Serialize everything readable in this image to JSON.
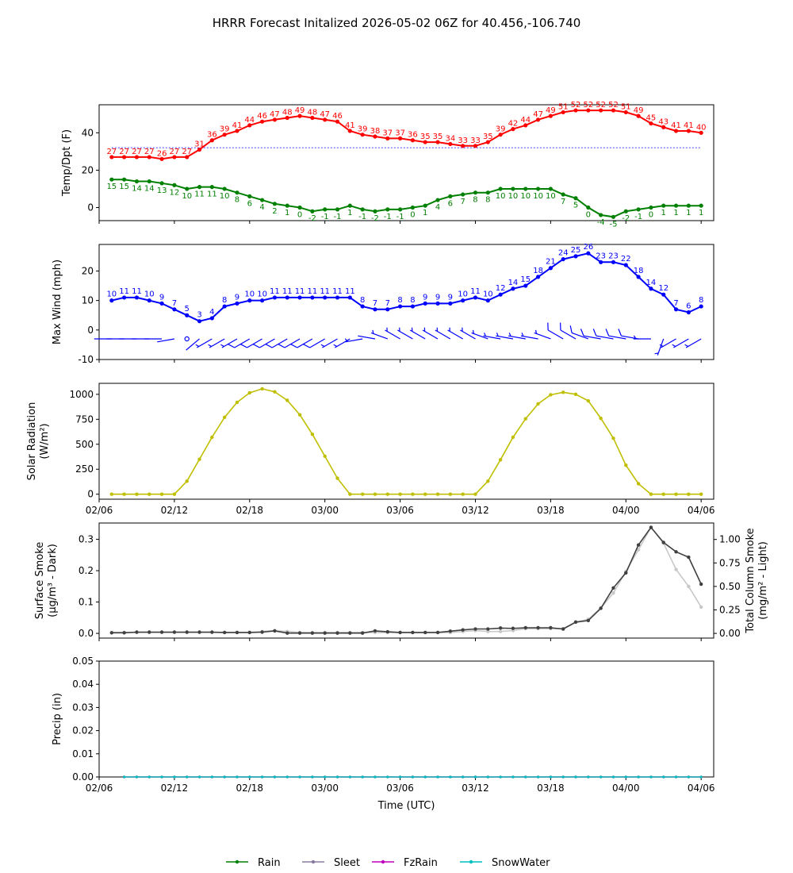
{
  "title": "HRRR Forecast Initalized 2026-05-02 06Z for 40.456,-106.740",
  "colors": {
    "temp": "#ff0000",
    "dewpoint": "#008000",
    "wind": "#0000ff",
    "solar": "#bfbf00",
    "smoke_dark": "#404040",
    "smoke_light": "#c8c8c8",
    "rain": "#008000",
    "sleet": "#8a7aa0",
    "fzrain": "#c000c0",
    "snowwater": "#00bfbf"
  },
  "time_axis": {
    "tick_labels": [
      "02/06",
      "02/12",
      "02/18",
      "03/00",
      "03/06",
      "03/12",
      "03/18",
      "04/00",
      "04/06"
    ],
    "tick_hours": [
      0,
      6,
      12,
      18,
      24,
      30,
      36,
      42,
      48
    ],
    "xlim_hours": [
      0,
      49
    ],
    "xlabel": "Time (UTC)"
  },
  "chart_data": [
    {
      "type": "line",
      "ylabel": "Temp/Dpt (F)",
      "ylim": [
        -7,
        55
      ],
      "y_ticks": [
        0,
        20,
        40
      ],
      "x_hours": [
        1,
        2,
        3,
        4,
        5,
        6,
        7,
        8,
        9,
        10,
        11,
        12,
        13,
        14,
        15,
        16,
        17,
        18,
        19,
        20,
        21,
        22,
        23,
        24,
        25,
        26,
        27,
        28,
        29,
        30,
        31,
        32,
        33,
        34,
        35,
        36,
        37,
        38,
        39,
        40,
        41,
        42,
        43,
        44,
        45,
        46,
        47,
        48
      ],
      "freezing_line": 32,
      "series": [
        {
          "name": "Temp",
          "values": [
            27,
            27,
            27,
            27,
            26,
            27,
            27,
            31,
            36,
            39,
            41,
            44,
            46,
            47,
            48,
            49,
            48,
            47,
            46,
            41,
            39,
            38,
            37,
            37,
            36,
            35,
            35,
            34,
            33,
            33,
            35,
            39,
            42,
            44,
            47,
            49,
            51,
            52,
            52,
            52,
            52,
            51,
            49,
            45,
            43,
            41,
            41,
            40
          ]
        },
        {
          "name": "Dewpoint",
          "values": [
            15,
            15,
            14,
            14,
            13,
            12,
            10,
            11,
            11,
            10,
            8,
            6,
            4,
            2,
            1,
            0,
            -2,
            -1,
            -1,
            1,
            -1,
            -2,
            -1,
            -1,
            0,
            1,
            4,
            6,
            7,
            8,
            8,
            10,
            10,
            10,
            10,
            10,
            7,
            5,
            0,
            -4,
            -5,
            -2,
            -1,
            0,
            1,
            1,
            1,
            1
          ]
        }
      ]
    },
    {
      "type": "line",
      "ylabel": "Max Wind (mph)",
      "ylim": [
        -10,
        29
      ],
      "y_ticks": [
        -10,
        0,
        10,
        20
      ],
      "x_hours": [
        1,
        2,
        3,
        4,
        5,
        6,
        7,
        8,
        9,
        10,
        11,
        12,
        13,
        14,
        15,
        16,
        17,
        18,
        19,
        20,
        21,
        22,
        23,
        24,
        25,
        26,
        27,
        28,
        29,
        30,
        31,
        32,
        33,
        34,
        35,
        36,
        37,
        38,
        39,
        40,
        41,
        42,
        43,
        44,
        45,
        46,
        47,
        48
      ],
      "barb_level": -3,
      "series": [
        {
          "name": "Max Wind",
          "values": [
            10,
            11,
            11,
            10,
            9,
            7,
            5,
            3,
            4,
            8,
            9,
            10,
            10,
            11,
            11,
            11,
            11,
            11,
            11,
            11,
            8,
            7,
            7,
            8,
            8,
            9,
            9,
            9,
            10,
            11,
            10,
            12,
            14,
            15,
            18,
            21,
            24,
            25,
            26,
            23,
            23,
            22,
            18,
            14,
            12,
            7,
            6,
            8
          ]
        }
      ],
      "barbs": {
        "speed_kt": [
          3,
          3,
          3,
          3,
          3,
          3,
          0,
          3,
          5,
          8,
          8,
          10,
          10,
          10,
          10,
          10,
          10,
          10,
          8,
          7,
          5,
          3,
          5,
          5,
          5,
          5,
          5,
          5,
          5,
          5,
          5,
          5,
          5,
          5,
          5,
          5,
          10,
          10,
          10,
          10,
          10,
          10,
          10,
          5,
          5,
          5,
          5,
          5
        ],
        "direction_deg": [
          270,
          270,
          270,
          270,
          270,
          260,
          0,
          230,
          240,
          240,
          240,
          240,
          240,
          240,
          240,
          240,
          240,
          240,
          240,
          240,
          260,
          280,
          290,
          300,
          300,
          300,
          300,
          300,
          300,
          300,
          290,
          280,
          280,
          280,
          280,
          290,
          300,
          300,
          290,
          280,
          280,
          280,
          280,
          270,
          200,
          240,
          240,
          240
        ]
      }
    },
    {
      "type": "line",
      "ylabel": "Solar Radiation (W/m²)",
      "ylim": [
        -50,
        1110
      ],
      "y_ticks": [
        0,
        250,
        500,
        750,
        1000
      ],
      "x_hours": [
        1,
        2,
        3,
        4,
        5,
        6,
        7,
        8,
        9,
        10,
        11,
        12,
        13,
        14,
        15,
        16,
        17,
        18,
        19,
        20,
        21,
        22,
        23,
        24,
        25,
        26,
        27,
        28,
        29,
        30,
        31,
        32,
        33,
        34,
        35,
        36,
        37,
        38,
        39,
        40,
        41,
        42,
        43,
        44,
        45,
        46,
        47,
        48
      ],
      "series": [
        {
          "name": "Solar Radiation",
          "values": [
            0,
            0,
            0,
            0,
            0,
            0,
            130,
            350,
            570,
            770,
            920,
            1015,
            1055,
            1025,
            940,
            795,
            600,
            380,
            160,
            0,
            0,
            0,
            0,
            0,
            0,
            0,
            0,
            0,
            0,
            0,
            130,
            345,
            570,
            755,
            905,
            995,
            1020,
            1000,
            935,
            760,
            560,
            290,
            105,
            0,
            0,
            0,
            0,
            0
          ]
        }
      ]
    },
    {
      "type": "line",
      "ylabel": "Surface Smoke (μg/m³ - Dark)",
      "ylabel_right": "Total Column Smoke (mg/m² - Light)",
      "ylim": [
        -0.015,
        0.352
      ],
      "y_ticks": [
        0.0,
        0.1,
        0.2,
        0.3
      ],
      "y_ticklabels": [
        "0.0",
        "0.1",
        "0.2",
        "0.3"
      ],
      "ylim_right": [
        -0.05,
        1.175
      ],
      "y_ticks_right": [
        0.0,
        0.25,
        0.5,
        0.75,
        1.0
      ],
      "y_ticklabels_right": [
        "0.00",
        "0.25",
        "0.50",
        "0.75",
        "1.00"
      ],
      "x_hours": [
        1,
        2,
        3,
        4,
        5,
        6,
        7,
        8,
        9,
        10,
        11,
        12,
        13,
        14,
        15,
        16,
        17,
        18,
        19,
        20,
        21,
        22,
        23,
        24,
        25,
        26,
        27,
        28,
        29,
        30,
        31,
        32,
        33,
        34,
        35,
        36,
        37,
        38,
        39,
        40,
        41,
        42,
        43,
        44,
        45,
        46,
        47,
        48
      ],
      "series": [
        {
          "name": "Surface Smoke",
          "values": [
            0.002,
            0.002,
            0.004,
            0.004,
            0.004,
            0.004,
            0.004,
            0.004,
            0.004,
            0.003,
            0.003,
            0.003,
            0.004,
            0.008,
            0.001,
            0.001,
            0.001,
            0.001,
            0.001,
            0.001,
            0.001,
            0.008,
            0.005,
            0.003,
            0.003,
            0.003,
            0.003,
            0.007,
            0.011,
            0.014,
            0.014,
            0.017,
            0.016,
            0.018,
            0.018,
            0.018,
            0.014,
            0.036,
            0.041,
            0.08,
            0.145,
            0.193,
            0.282,
            0.338,
            0.29,
            0.26,
            0.243,
            0.157
          ]
        },
        {
          "name": "Total Column Smoke",
          "values": [
            0.01,
            0.01,
            0.01,
            0.01,
            0.01,
            0.01,
            0.01,
            0.01,
            0.01,
            0.01,
            0.01,
            0.01,
            0.02,
            0.03,
            0.02,
            0.01,
            0.01,
            0.01,
            0.01,
            0.01,
            0.01,
            0.01,
            0.01,
            0.01,
            0.01,
            0.01,
            0.01,
            0.01,
            0.02,
            0.03,
            0.02,
            0.02,
            0.03,
            0.05,
            0.05,
            0.05,
            0.05,
            0.12,
            0.15,
            0.27,
            0.43,
            0.66,
            0.89,
            1.13,
            0.96,
            0.68,
            0.5,
            0.28
          ]
        }
      ]
    },
    {
      "type": "line",
      "ylabel": "Precip (in)",
      "ylim": [
        0,
        0.05
      ],
      "y_ticks": [
        0.0,
        0.01,
        0.02,
        0.03,
        0.04,
        0.05
      ],
      "y_ticklabels": [
        "0.00",
        "0.01",
        "0.02",
        "0.03",
        "0.04",
        "0.05"
      ],
      "x_hours": [
        2,
        3,
        4,
        5,
        6,
        7,
        8,
        9,
        10,
        11,
        12,
        13,
        14,
        15,
        16,
        17,
        18,
        19,
        20,
        21,
        22,
        23,
        24,
        25,
        26,
        27,
        28,
        29,
        30,
        31,
        32,
        33,
        34,
        35,
        36,
        37,
        38,
        39,
        40,
        41,
        42,
        43,
        44,
        45,
        46,
        47,
        48
      ],
      "series": [
        {
          "name": "Rain",
          "values": [
            0,
            0,
            0,
            0,
            0,
            0,
            0,
            0,
            0,
            0,
            0,
            0,
            0,
            0,
            0,
            0,
            0,
            0,
            0,
            0,
            0,
            0,
            0,
            0,
            0,
            0,
            0,
            0,
            0,
            0,
            0,
            0,
            0,
            0,
            0,
            0,
            0,
            0,
            0,
            0,
            0,
            0,
            0,
            0,
            0,
            0,
            0
          ]
        },
        {
          "name": "Sleet",
          "values": [
            0,
            0,
            0,
            0,
            0,
            0,
            0,
            0,
            0,
            0,
            0,
            0,
            0,
            0,
            0,
            0,
            0,
            0,
            0,
            0,
            0,
            0,
            0,
            0,
            0,
            0,
            0,
            0,
            0,
            0,
            0,
            0,
            0,
            0,
            0,
            0,
            0,
            0,
            0,
            0,
            0,
            0,
            0,
            0,
            0,
            0,
            0
          ]
        },
        {
          "name": "FzRain",
          "values": [
            0,
            0,
            0,
            0,
            0,
            0,
            0,
            0,
            0,
            0,
            0,
            0,
            0,
            0,
            0,
            0,
            0,
            0,
            0,
            0,
            0,
            0,
            0,
            0,
            0,
            0,
            0,
            0,
            0,
            0,
            0,
            0,
            0,
            0,
            0,
            0,
            0,
            0,
            0,
            0,
            0,
            0,
            0,
            0,
            0,
            0,
            0
          ]
        },
        {
          "name": "SnowWater",
          "values": [
            0,
            0,
            0,
            0,
            0,
            0,
            0,
            0,
            0,
            0,
            0,
            0,
            0,
            0,
            0,
            0,
            0,
            0,
            0,
            0,
            0,
            0,
            0,
            0,
            0,
            0,
            0,
            0,
            0,
            0,
            0,
            0,
            0,
            0,
            0,
            0,
            0,
            0,
            0,
            0,
            0,
            0,
            0,
            0,
            0,
            0,
            0
          ]
        }
      ]
    }
  ],
  "legend": {
    "placement": "bottom-center",
    "items": [
      "Rain",
      "Sleet",
      "FzRain",
      "SnowWater"
    ]
  }
}
